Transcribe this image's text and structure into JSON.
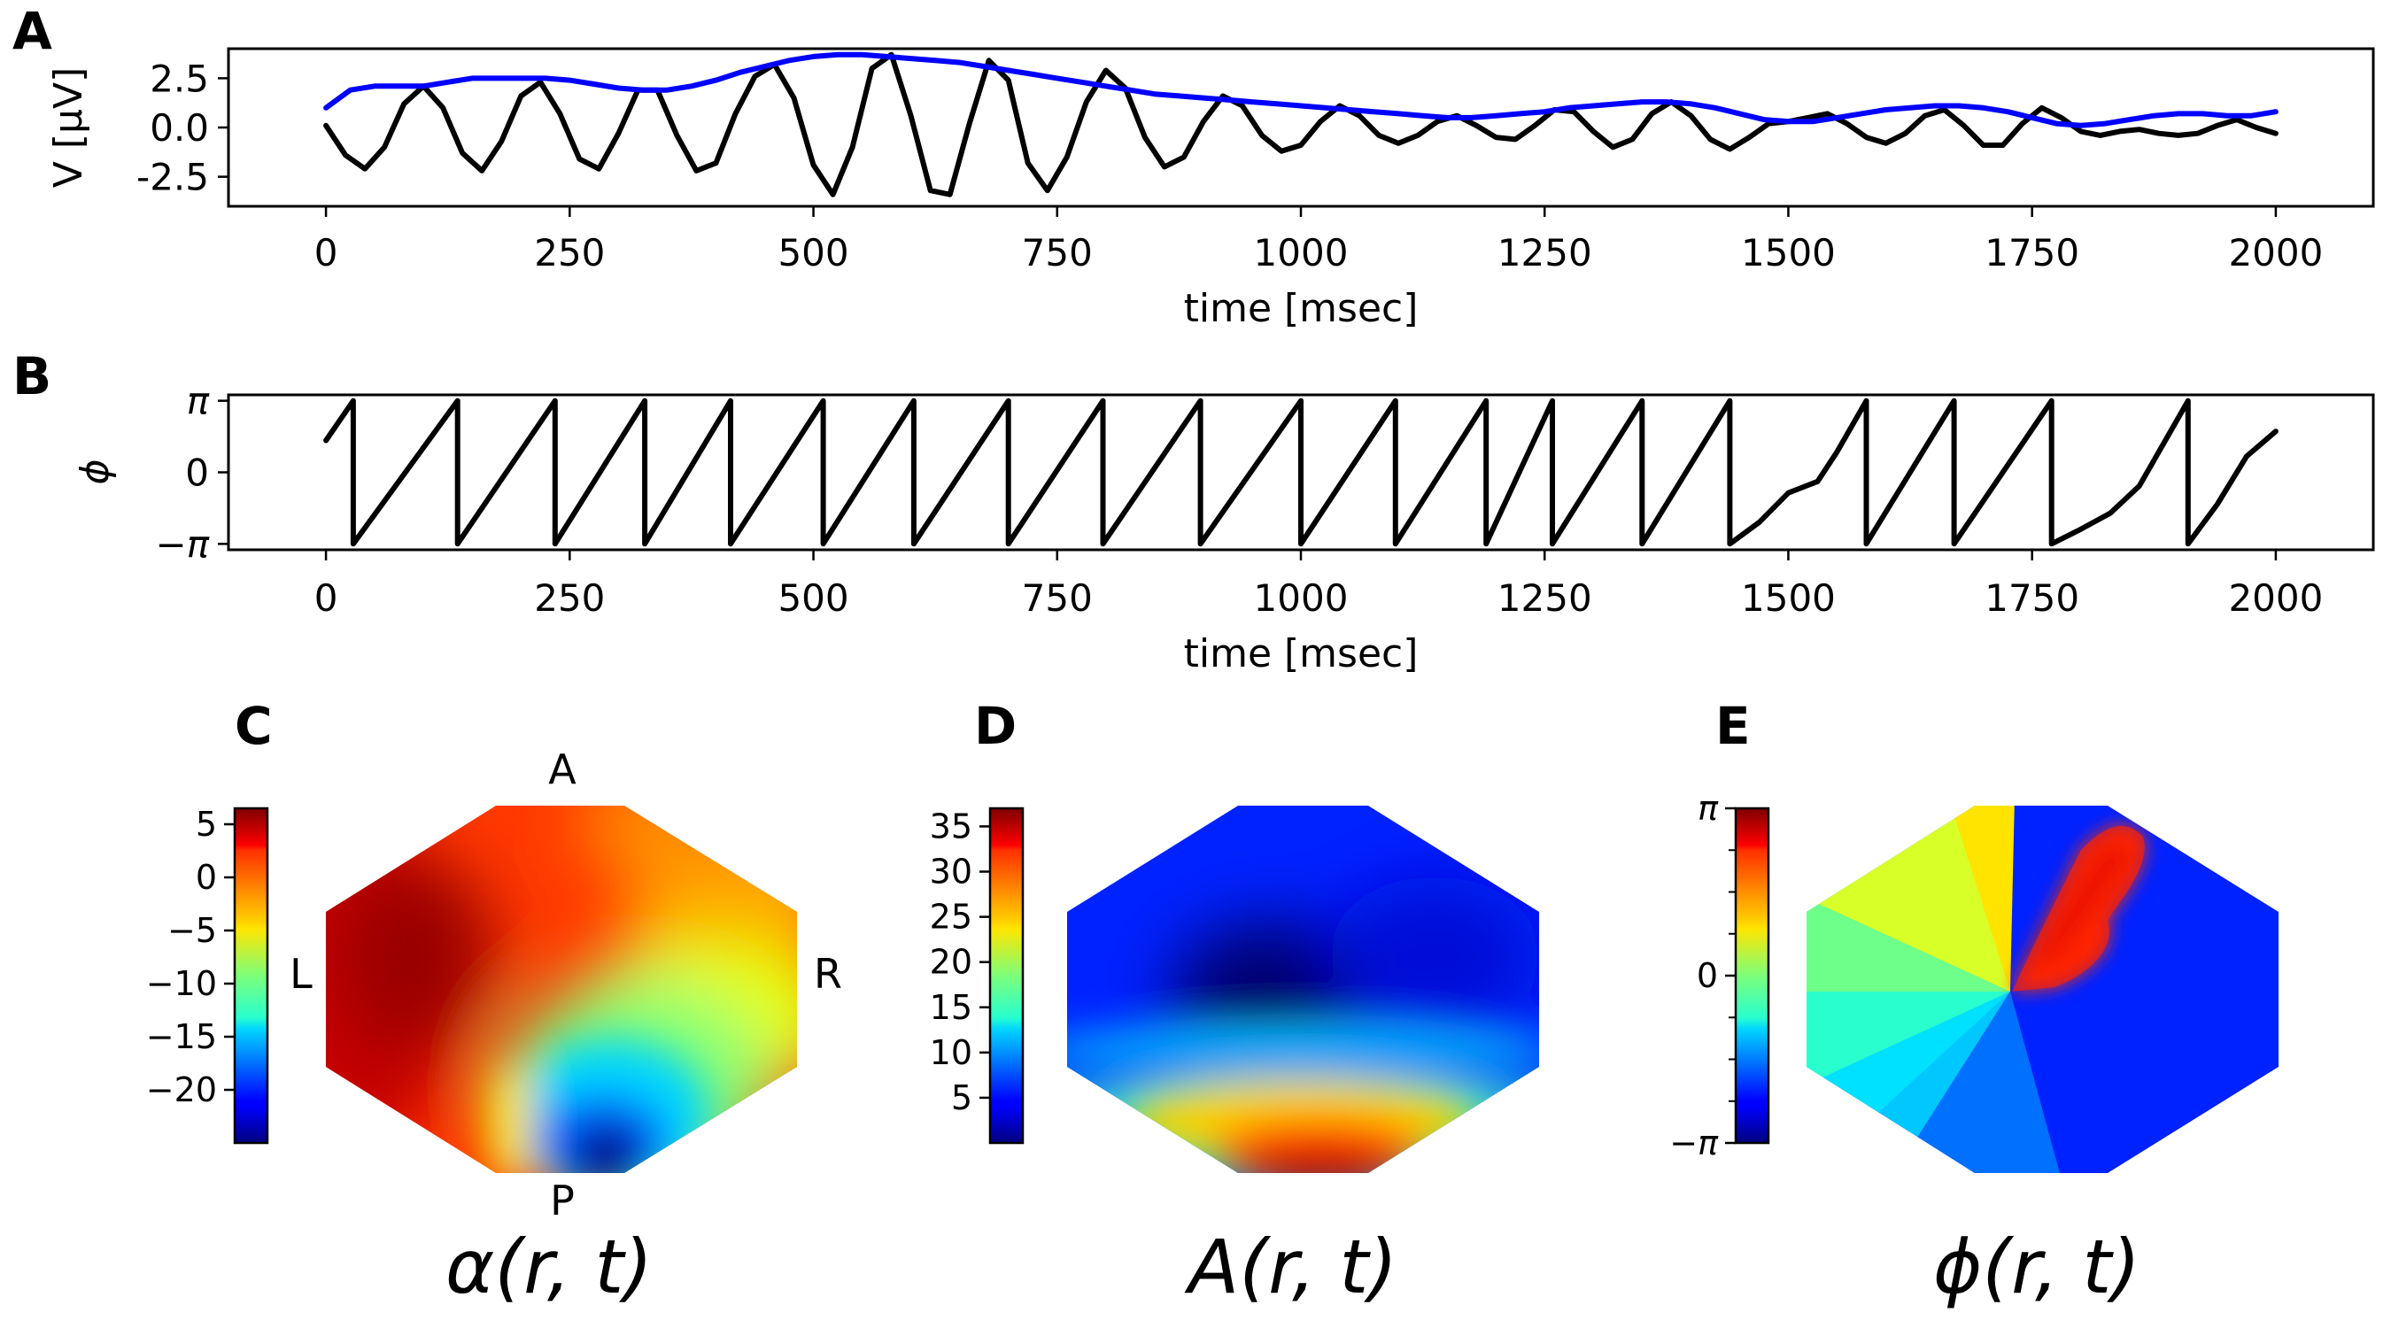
{
  "chart_data": [
    {
      "panel": "A",
      "type": "line",
      "xlabel": "time [msec]",
      "ylabel": "V [μV]",
      "xlim": [
        -100,
        2100
      ],
      "ylim": [
        -4,
        4
      ],
      "xticks": [
        0,
        250,
        500,
        750,
        1000,
        1250,
        1500,
        1750,
        2000
      ],
      "yticks": [
        2.5,
        0.0,
        -2.5
      ],
      "ytick_labels": [
        "2.5",
        "0.0",
        "-2.5"
      ],
      "grid": false,
      "series": [
        {
          "color": "#000000",
          "x": [
            0,
            20,
            40,
            60,
            80,
            100,
            120,
            140,
            160,
            180,
            200,
            220,
            240,
            260,
            280,
            300,
            320,
            340,
            360,
            380,
            400,
            420,
            440,
            460,
            480,
            500,
            520,
            540,
            560,
            580,
            600,
            620,
            640,
            660,
            680,
            700,
            720,
            740,
            760,
            780,
            800,
            820,
            840,
            860,
            880,
            900,
            920,
            940,
            960,
            980,
            1000,
            1020,
            1040,
            1060,
            1080,
            1100,
            1120,
            1140,
            1160,
            1180,
            1200,
            1220,
            1240,
            1260,
            1280,
            1300,
            1320,
            1340,
            1360,
            1380,
            1400,
            1420,
            1440,
            1460,
            1480,
            1500,
            1520,
            1540,
            1560,
            1580,
            1600,
            1620,
            1640,
            1660,
            1680,
            1700,
            1720,
            1740,
            1760,
            1780,
            1800,
            1820,
            1840,
            1860,
            1880,
            1900,
            1920,
            1940,
            1960,
            1980,
            2000
          ],
          "values": [
            0.1,
            -1.4,
            -2.1,
            -1.0,
            1.2,
            2.1,
            1.0,
            -1.3,
            -2.2,
            -0.7,
            1.6,
            2.3,
            0.7,
            -1.6,
            -2.1,
            -0.3,
            1.9,
            1.9,
            -0.4,
            -2.2,
            -1.8,
            0.7,
            2.6,
            3.2,
            1.5,
            -1.9,
            -3.4,
            -1.0,
            3.0,
            3.7,
            0.6,
            -3.2,
            -3.4,
            0.2,
            3.4,
            2.4,
            -1.8,
            -3.2,
            -1.5,
            1.3,
            2.9,
            2.0,
            -0.5,
            -2.0,
            -1.5,
            0.3,
            1.6,
            1.1,
            -0.4,
            -1.2,
            -0.9,
            0.3,
            1.1,
            0.6,
            -0.4,
            -0.8,
            -0.4,
            0.3,
            0.6,
            0.1,
            -0.5,
            -0.6,
            0.1,
            0.9,
            0.8,
            -0.2,
            -1.0,
            -0.6,
            0.7,
            1.3,
            0.6,
            -0.6,
            -1.1,
            -0.5,
            0.2,
            0.3,
            0.5,
            0.7,
            0.2,
            -0.5,
            -0.8,
            -0.3,
            0.6,
            0.9,
            0.1,
            -0.9,
            -0.9,
            0.2,
            1.0,
            0.5,
            -0.2,
            -0.4,
            -0.2,
            -0.1,
            -0.3,
            -0.4,
            -0.3,
            0.1,
            0.4,
            0.0,
            -0.3
          ]
        },
        {
          "color": "#0000ff",
          "x": [
            0,
            25,
            50,
            75,
            100,
            125,
            150,
            175,
            200,
            225,
            250,
            275,
            300,
            325,
            350,
            375,
            400,
            425,
            450,
            475,
            500,
            525,
            550,
            575,
            600,
            625,
            650,
            675,
            700,
            725,
            750,
            775,
            800,
            825,
            850,
            875,
            900,
            925,
            950,
            975,
            1000,
            1025,
            1050,
            1075,
            1100,
            1125,
            1150,
            1175,
            1200,
            1225,
            1250,
            1275,
            1300,
            1325,
            1350,
            1375,
            1400,
            1425,
            1450,
            1475,
            1500,
            1525,
            1550,
            1575,
            1600,
            1625,
            1650,
            1675,
            1700,
            1725,
            1750,
            1775,
            1800,
            1825,
            1850,
            1875,
            1900,
            1925,
            1950,
            1975,
            2000
          ],
          "values": [
            1.0,
            1.9,
            2.1,
            2.1,
            2.1,
            2.3,
            2.5,
            2.5,
            2.5,
            2.5,
            2.4,
            2.2,
            2.0,
            1.9,
            1.9,
            2.1,
            2.4,
            2.8,
            3.1,
            3.4,
            3.6,
            3.7,
            3.7,
            3.6,
            3.5,
            3.4,
            3.3,
            3.1,
            2.9,
            2.7,
            2.5,
            2.3,
            2.1,
            1.9,
            1.7,
            1.6,
            1.5,
            1.4,
            1.3,
            1.2,
            1.1,
            1.0,
            0.9,
            0.8,
            0.7,
            0.6,
            0.5,
            0.5,
            0.6,
            0.7,
            0.8,
            1.0,
            1.1,
            1.2,
            1.3,
            1.3,
            1.2,
            1.0,
            0.7,
            0.4,
            0.3,
            0.3,
            0.5,
            0.7,
            0.9,
            1.0,
            1.1,
            1.1,
            1.0,
            0.8,
            0.5,
            0.2,
            0.1,
            0.2,
            0.4,
            0.6,
            0.7,
            0.7,
            0.6,
            0.6,
            0.8
          ]
        }
      ]
    },
    {
      "panel": "B",
      "type": "line",
      "xlabel": "time [msec]",
      "ylabel": "ϕ",
      "xlim": [
        -100,
        2100
      ],
      "ylim": [
        -3.4,
        3.4
      ],
      "xticks": [
        0,
        250,
        500,
        750,
        1000,
        1250,
        1500,
        1750,
        2000
      ],
      "yticks": [
        3.1416,
        0,
        -3.1416
      ],
      "ytick_labels": [
        "π",
        "0",
        "−π"
      ],
      "grid": false,
      "series": [
        {
          "color": "#000000",
          "x": [
            0,
            28,
            28,
            135,
            135,
            235,
            235,
            327,
            327,
            415,
            415,
            510,
            510,
            603,
            603,
            700,
            700,
            797,
            797,
            897,
            897,
            1000,
            1000,
            1097,
            1097,
            1190,
            1190,
            1258,
            1258,
            1350,
            1350,
            1440,
            1440,
            1470,
            1500,
            1530,
            1550,
            1580,
            1580,
            1670,
            1670,
            1770,
            1770,
            1800,
            1830,
            1860,
            1910,
            1910,
            1940,
            1970,
            2000
          ],
          "values": [
            1.4,
            3.14,
            -3.14,
            3.14,
            -3.14,
            3.14,
            -3.14,
            3.14,
            -3.14,
            3.14,
            -3.14,
            3.14,
            -3.14,
            3.14,
            -3.14,
            3.14,
            -3.14,
            3.14,
            -3.14,
            3.14,
            -3.14,
            3.14,
            -3.14,
            3.14,
            -3.14,
            3.14,
            -3.14,
            3.14,
            -3.14,
            3.14,
            -3.14,
            3.14,
            -3.14,
            -2.2,
            -0.9,
            -0.4,
            0.9,
            3.14,
            -3.14,
            3.14,
            -3.14,
            3.14,
            -3.14,
            -2.5,
            -1.8,
            -0.6,
            3.14,
            -3.14,
            -1.4,
            0.7,
            1.8
          ]
        }
      ]
    },
    {
      "panel": "C",
      "type": "heatmap",
      "quantity": "α(r, t)",
      "colormap": "jet",
      "clim": [
        -25,
        6.5
      ],
      "colorbar_ticks": [
        5,
        0,
        -5,
        -10,
        -15,
        -20
      ],
      "colorbar_tick_labels": [
        "5",
        "0",
        "−5",
        "−10",
        "−15",
        "−20"
      ],
      "orientation_labels": {
        "anterior": "A",
        "posterior": "P",
        "left": "L",
        "right": "R"
      }
    },
    {
      "panel": "D",
      "type": "heatmap",
      "quantity": "A(r, t)",
      "colormap": "jet",
      "clim": [
        0,
        37
      ],
      "colorbar_ticks": [
        35,
        30,
        25,
        20,
        15,
        10,
        5
      ],
      "colorbar_tick_labels": [
        "35",
        "30",
        "25",
        "20",
        "15",
        "10",
        "5"
      ]
    },
    {
      "panel": "E",
      "type": "heatmap",
      "quantity": "ϕ(r, t)",
      "colormap": "jet",
      "clim": [
        -3.1416,
        3.1416
      ],
      "colorbar_ticks": [
        3.1416,
        0,
        -3.1416
      ],
      "colorbar_tick_labels": [
        "π",
        "0",
        "−π"
      ]
    }
  ],
  "panels": {
    "a": {
      "letter": "A"
    },
    "b": {
      "letter": "B"
    },
    "c": {
      "letter": "C",
      "formula": "α(r, t)"
    },
    "d": {
      "letter": "D",
      "formula": "A(r, t)"
    },
    "e": {
      "letter": "E",
      "formula": "ϕ(r, t)"
    }
  }
}
